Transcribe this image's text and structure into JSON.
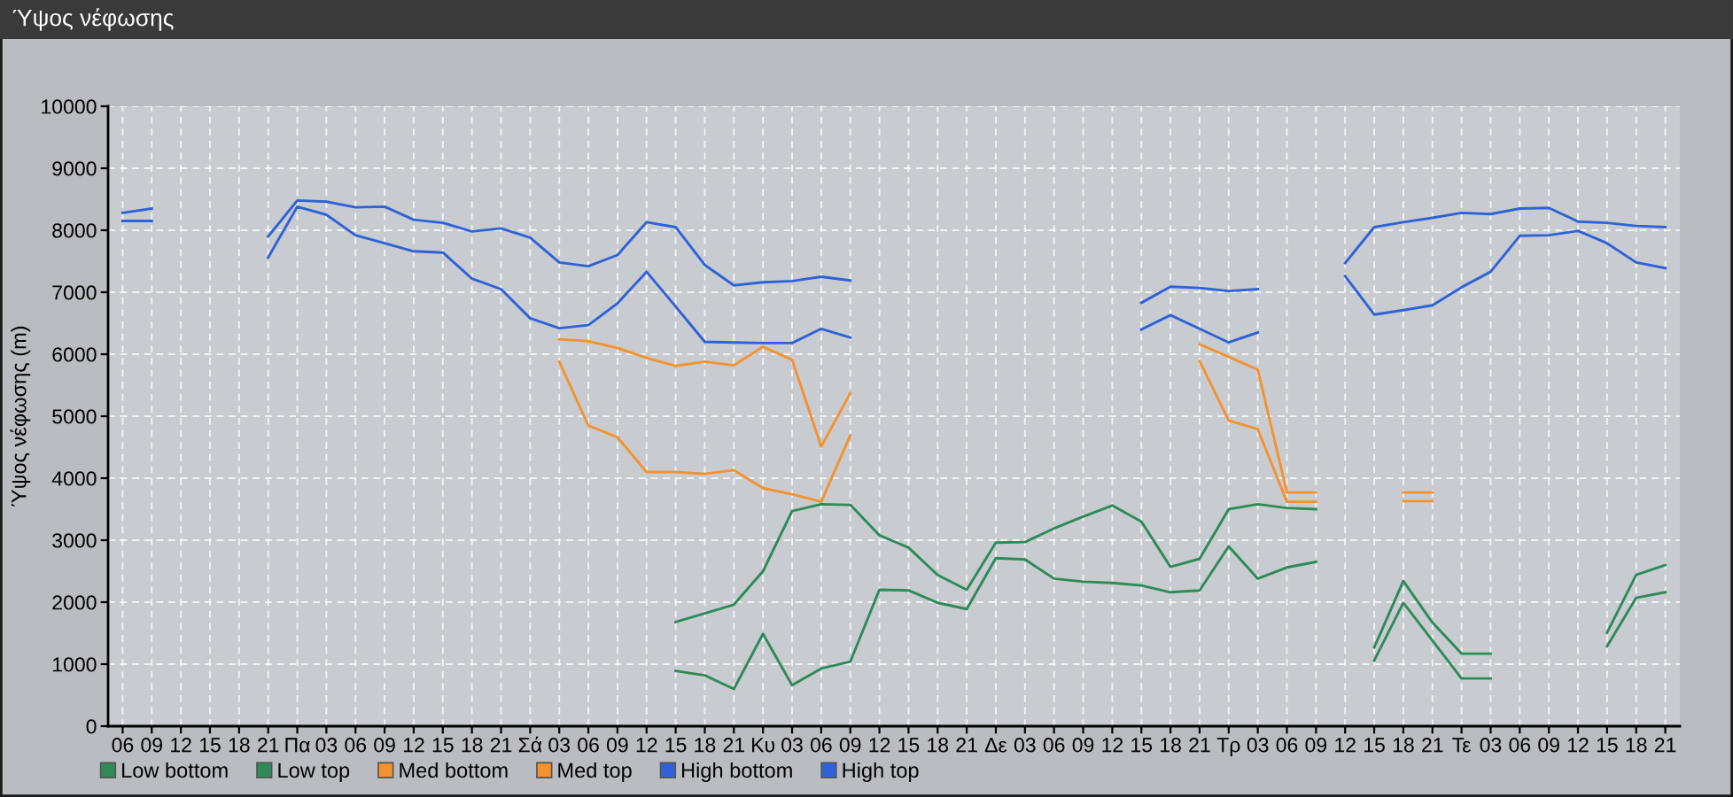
{
  "chart_data": {
    "type": "line",
    "title": "Ύψος νέφωσης",
    "ylabel": "Ύψος νέφωσης (m)",
    "categories": [
      "06",
      "09",
      "12",
      "15",
      "18",
      "21",
      "Πα",
      "03",
      "06",
      "09",
      "12",
      "15",
      "18",
      "21",
      "Σά",
      "03",
      "06",
      "09",
      "12",
      "15",
      "18",
      "21",
      "Κυ",
      "03",
      "06",
      "09",
      "12",
      "15",
      "18",
      "21",
      "Δε",
      "03",
      "06",
      "09",
      "12",
      "15",
      "18",
      "21",
      "Τρ",
      "03",
      "06",
      "09",
      "12",
      "15",
      "18",
      "21",
      "Τε",
      "03",
      "06",
      "09",
      "12",
      "15",
      "18",
      "21"
    ],
    "ylim": [
      0,
      10000
    ],
    "yticks": [
      0,
      1000,
      2000,
      3000,
      4000,
      5000,
      6000,
      7000,
      8000,
      9000,
      10000
    ],
    "grid": true,
    "legend": "bottom",
    "line_style": "solid",
    "series": [
      {
        "name": "Low bottom",
        "color": "#2e8b57",
        "values": [
          null,
          null,
          null,
          null,
          null,
          null,
          null,
          null,
          null,
          null,
          null,
          null,
          null,
          null,
          null,
          null,
          null,
          null,
          null,
          890,
          820,
          600,
          1490,
          660,
          930,
          1040,
          2200,
          2190,
          1990,
          1890,
          2710,
          2690,
          2380,
          2330,
          2310,
          2270,
          2160,
          2190,
          2900,
          2380,
          2560,
          2650,
          null,
          1060,
          1990,
          1380,
          770,
          770,
          null,
          null,
          null,
          1290,
          2070,
          2160
        ]
      },
      {
        "name": "Low top",
        "color": "#2e8b57",
        "values": [
          null,
          null,
          null,
          null,
          null,
          null,
          null,
          null,
          null,
          null,
          null,
          null,
          null,
          null,
          null,
          null,
          null,
          null,
          null,
          1680,
          1820,
          1960,
          2500,
          3470,
          3580,
          3570,
          3080,
          2880,
          2440,
          2200,
          2960,
          2970,
          3190,
          3380,
          3560,
          3300,
          2570,
          2700,
          3500,
          3580,
          3520,
          3500,
          null,
          1270,
          2340,
          1670,
          1170,
          1170,
          null,
          null,
          null,
          1510,
          2440,
          2600
        ]
      },
      {
        "name": "Med bottom",
        "color": "#f39230",
        "values": [
          null,
          null,
          null,
          null,
          null,
          null,
          null,
          null,
          null,
          null,
          null,
          null,
          null,
          null,
          null,
          5880,
          4850,
          4660,
          4100,
          4100,
          4070,
          4130,
          3840,
          3740,
          3620,
          4690,
          null,
          null,
          null,
          null,
          null,
          null,
          null,
          null,
          null,
          null,
          null,
          5890,
          4930,
          4790,
          3620,
          3620,
          null,
          null,
          3630,
          3630,
          null,
          null,
          null,
          null,
          null,
          null,
          null,
          null
        ]
      },
      {
        "name": "Med top",
        "color": "#f39230",
        "values": [
          null,
          null,
          null,
          null,
          null,
          null,
          null,
          null,
          null,
          null,
          null,
          null,
          null,
          null,
          null,
          6240,
          6210,
          6100,
          5940,
          5810,
          5880,
          5820,
          6120,
          5910,
          4510,
          5370,
          null,
          null,
          null,
          null,
          null,
          null,
          null,
          null,
          null,
          null,
          null,
          6160,
          5960,
          5750,
          3770,
          3770,
          null,
          null,
          3770,
          3770,
          null,
          null,
          null,
          null,
          null,
          null,
          null,
          null
        ]
      },
      {
        "name": "High bottom",
        "color": "#2f62d8",
        "values": [
          8150,
          8150,
          null,
          null,
          null,
          7560,
          8380,
          8250,
          7920,
          7790,
          7660,
          7640,
          7220,
          7050,
          6580,
          6420,
          6470,
          6820,
          7330,
          6770,
          6200,
          6190,
          6180,
          6180,
          6410,
          6270,
          null,
          null,
          null,
          null,
          null,
          null,
          null,
          null,
          null,
          6400,
          6630,
          6410,
          6190,
          6350,
          null,
          null,
          7260,
          6640,
          6710,
          6790,
          7080,
          7330,
          7910,
          7920,
          7990,
          7790,
          7480,
          7390
        ]
      },
      {
        "name": "High top",
        "color": "#2f62d8",
        "values": [
          8280,
          8350,
          null,
          null,
          null,
          7900,
          8480,
          8460,
          8370,
          8380,
          8170,
          8120,
          7980,
          8030,
          7880,
          7480,
          7420,
          7600,
          8130,
          8050,
          7440,
          7110,
          7160,
          7180,
          7250,
          7190,
          null,
          null,
          null,
          null,
          null,
          null,
          null,
          null,
          null,
          6830,
          7090,
          7070,
          7020,
          7050,
          null,
          null,
          7470,
          8050,
          8130,
          8200,
          8280,
          8260,
          8350,
          8360,
          8140,
          8120,
          8070,
          8050
        ]
      }
    ]
  }
}
